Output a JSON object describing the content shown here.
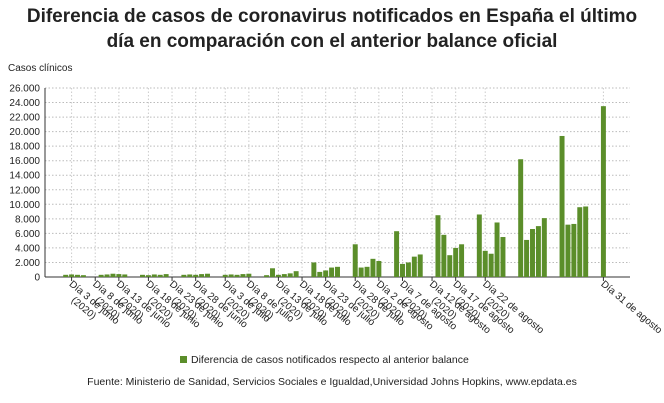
{
  "chart_data": {
    "type": "bar",
    "title": "Diferencia de casos de coronavirus notificados en España el último día en comparación con el anterior balance oficial",
    "y_axis_label": "Casos clínicos",
    "source": "Fuente: Ministerio de Sanidad, Servicios Sociales e Igualdad,Universidad Johns Hopkins, www.epdata.es",
    "color": "#5b8e2a",
    "grid": true,
    "legend": "bottom",
    "series": [
      {
        "name": "Diferencia de casos notificados respecto al anterior balance",
        "color": "#5b8e2a",
        "values": [
          null,
          null,
          null,
          300,
          350,
          300,
          250,
          null,
          null,
          300,
          350,
          450,
          400,
          350,
          null,
          null,
          300,
          250,
          350,
          300,
          400,
          null,
          null,
          300,
          350,
          300,
          400,
          450,
          null,
          null,
          300,
          350,
          300,
          400,
          450,
          null,
          null,
          250,
          1200,
          300,
          400,
          500,
          800,
          null,
          null,
          2000,
          700,
          900,
          1300,
          1400,
          null,
          null,
          4500,
          1300,
          1400,
          2500,
          2200,
          null,
          null,
          6300,
          1800,
          2000,
          2800,
          3100,
          null,
          null,
          8500,
          5800,
          3000,
          4000,
          4500,
          null,
          null,
          8600,
          3600,
          3200,
          7500,
          5500,
          null,
          null,
          16200,
          5100,
          6600,
          7000,
          8100,
          null,
          null,
          19400,
          7200,
          7300,
          9600,
          9700,
          null,
          null,
          23500,
          null,
          null,
          null,
          null
        ]
      }
    ],
    "categories": [
      null,
      null,
      null,
      null,
      "Día 3 de junio (2020)",
      null,
      null,
      null,
      "Día 8 de junio (2020)",
      null,
      null,
      null,
      "Día 13 de junio (2020)",
      null,
      null,
      null,
      null,
      "Día 18 de junio (2020)",
      null,
      null,
      null,
      "Día 23 de junio (2020)",
      null,
      null,
      null,
      "Día 28 de junio (2020)",
      null,
      null,
      null,
      null,
      "Día 3 de julio (2020)",
      null,
      null,
      null,
      "Día 8 de julio (2020)",
      null,
      null,
      null,
      null,
      "Día 13 de julio (2020)",
      null,
      null,
      null,
      "Día 18 de julio (2020)",
      null,
      null,
      null,
      "Día 23 de julio (2020)",
      null,
      null,
      null,
      null,
      "Día 28 de julio (2020)",
      null,
      null,
      null,
      "Día 2 de agosto (2020)",
      null,
      null,
      null,
      "Día 7 de agosto (2020)",
      null,
      null,
      null,
      null,
      "Día 12 de agosto (2020)",
      null,
      null,
      null,
      "Día 17 de agosto (2020)",
      null,
      null,
      null,
      null,
      "Día 22 de agosto (2020)",
      null,
      null,
      null,
      null,
      null,
      null,
      null,
      null,
      null,
      null,
      null,
      null,
      null,
      null,
      null,
      null,
      null,
      null,
      null,
      "Día 31 de agosto",
      null,
      null,
      null,
      null
    ],
    "ylim": [
      0,
      26000
    ],
    "yticks": [
      0,
      {
        "value": 2000,
        "label": "2.000"
      },
      {
        "value": 4000,
        "label": "4.000"
      },
      {
        "value": 6000,
        "label": "6.000"
      },
      {
        "value": 8000,
        "label": "8.000"
      },
      {
        "value": 10000,
        "label": "10.000"
      },
      {
        "value": 12000,
        "label": "12.000"
      },
      {
        "value": 14000,
        "label": "14.000"
      },
      {
        "value": 16000,
        "label": "16.000"
      },
      {
        "value": 18000,
        "label": "18.000"
      },
      {
        "value": 20000,
        "label": "20.000"
      },
      {
        "value": 22000,
        "label": "22.000"
      },
      {
        "value": 24000,
        "label": "24.000"
      },
      {
        "value": 26000,
        "label": "26.000"
      }
    ]
  }
}
